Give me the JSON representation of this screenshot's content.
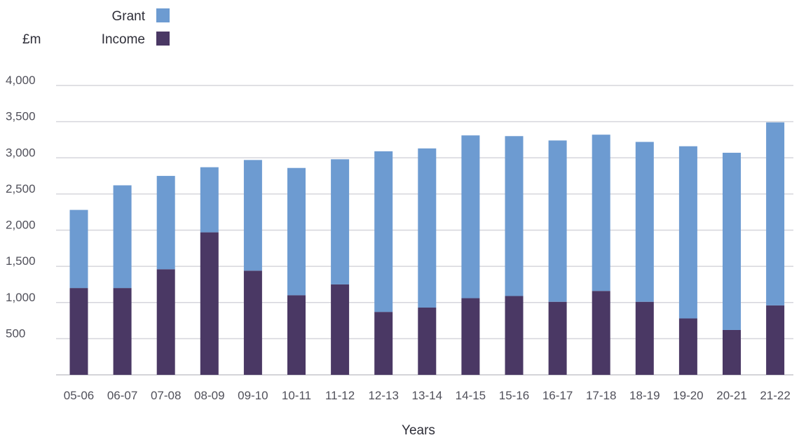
{
  "chart_data": {
    "type": "bar",
    "stacked": true,
    "title": "",
    "unit_label": "£m",
    "xlabel": "Years",
    "ylabel": "",
    "ylim": [
      0,
      4000
    ],
    "yticks": [
      500,
      1000,
      1500,
      2000,
      2500,
      3000,
      3500,
      4000
    ],
    "ytick_labels": [
      "500",
      "1,000",
      "1,500",
      "2,000",
      "2,500",
      "3,000",
      "3,500",
      "4,000"
    ],
    "grid": true,
    "legend_position": "top-left",
    "categories": [
      "05-06",
      "06-07",
      "07-08",
      "08-09",
      "09-10",
      "10-11",
      "11-12",
      "12-13",
      "13-14",
      "14-15",
      "15-16",
      "16-17",
      "17-18",
      "18-19",
      "19-20",
      "20-21",
      "21-22"
    ],
    "series": [
      {
        "name": "Income",
        "color": "#4a3864",
        "values": [
          1200,
          1200,
          1460,
          1970,
          1440,
          1100,
          1250,
          870,
          930,
          1060,
          1090,
          1010,
          1160,
          1010,
          780,
          620,
          960
        ]
      },
      {
        "name": "Grant",
        "color": "#6d9bd1",
        "values": [
          1080,
          1420,
          1290,
          900,
          1530,
          1760,
          1730,
          2220,
          2200,
          2250,
          2210,
          2230,
          2160,
          2210,
          2380,
          2450,
          2530
        ]
      }
    ],
    "legend_order": [
      "Grant",
      "Income"
    ]
  }
}
